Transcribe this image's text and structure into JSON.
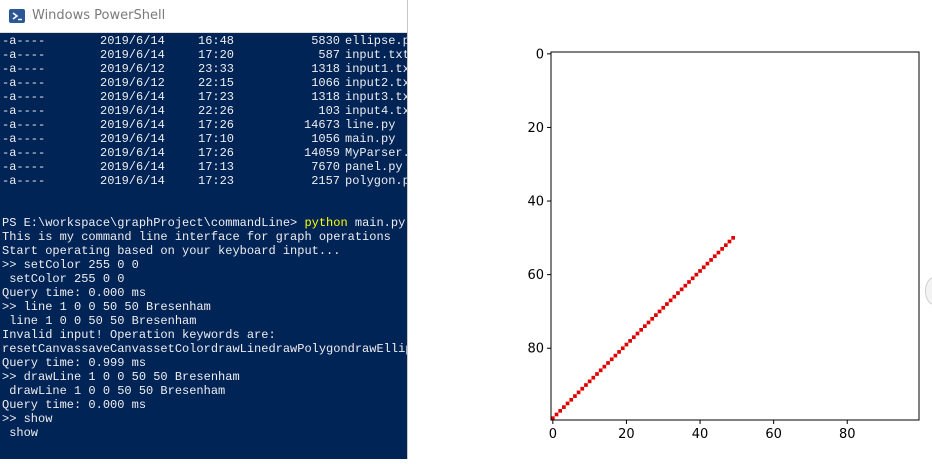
{
  "window": {
    "title": "Windows PowerShell"
  },
  "files": [
    {
      "mode": "-a----",
      "date": "2019/6/14",
      "time": "16:48",
      "size": "5830",
      "name": "ellipse.p"
    },
    {
      "mode": "-a----",
      "date": "2019/6/14",
      "time": "17:20",
      "size": "587",
      "name": "input.txt"
    },
    {
      "mode": "-a----",
      "date": "2019/6/12",
      "time": "23:33",
      "size": "1318",
      "name": "input1.tx"
    },
    {
      "mode": "-a----",
      "date": "2019/6/12",
      "time": "22:15",
      "size": "1066",
      "name": "input2.tx"
    },
    {
      "mode": "-a----",
      "date": "2019/6/14",
      "time": "17:23",
      "size": "1318",
      "name": "input3.tx"
    },
    {
      "mode": "-a----",
      "date": "2019/6/14",
      "time": "22:26",
      "size": "103",
      "name": "input4.tx"
    },
    {
      "mode": "-a----",
      "date": "2019/6/14",
      "time": "17:26",
      "size": "14673",
      "name": "line.py"
    },
    {
      "mode": "-a----",
      "date": "2019/6/14",
      "time": "17:10",
      "size": "1056",
      "name": "main.py"
    },
    {
      "mode": "-a----",
      "date": "2019/6/14",
      "time": "17:26",
      "size": "14059",
      "name": "MyParser."
    },
    {
      "mode": "-a----",
      "date": "2019/6/14",
      "time": "17:13",
      "size": "7670",
      "name": "panel.py"
    },
    {
      "mode": "-a----",
      "date": "2019/6/14",
      "time": "17:23",
      "size": "2157",
      "name": "polygon.p"
    }
  ],
  "prompt": {
    "path": "PS E:\\workspace\\graphProject\\commandLine> ",
    "command": "python",
    "args": " main.py"
  },
  "output": [
    "This is my command line interface for graph operations",
    "Start operating based on your keyboard input...",
    ">> setColor 255 0 0",
    " setColor 255 0 0",
    "Query time: 0.000 ms",
    ">> line 1 0 0 50 50 Bresenham",
    " line 1 0 0 50 50 Bresenham",
    "Invalid input! Operation keywords are:",
    "resetCanvassaveCanvassetColordrawLinedrawPolygondrawEllips",
    "Query time: 0.999 ms",
    ">> drawLine 1 0 0 50 50 Bresenham",
    " drawLine 1 0 0 50 50 Bresenham",
    "Query time: 0.000 ms",
    ">> show",
    " show"
  ],
  "chart_data": {
    "type": "scatter",
    "x_ticks": [
      "0",
      "20",
      "40",
      "60",
      "80"
    ],
    "y_ticks": [
      "0",
      "20",
      "40",
      "60",
      "80"
    ],
    "xlim": [
      -0.5,
      99.5
    ],
    "ylim": [
      99.5,
      -0.5
    ],
    "y_inverted": true,
    "grid": false,
    "series": [
      {
        "color": "#e00000",
        "points_x_from": 0,
        "points_x_to": 49,
        "equation": "y = 99 - x"
      }
    ]
  }
}
